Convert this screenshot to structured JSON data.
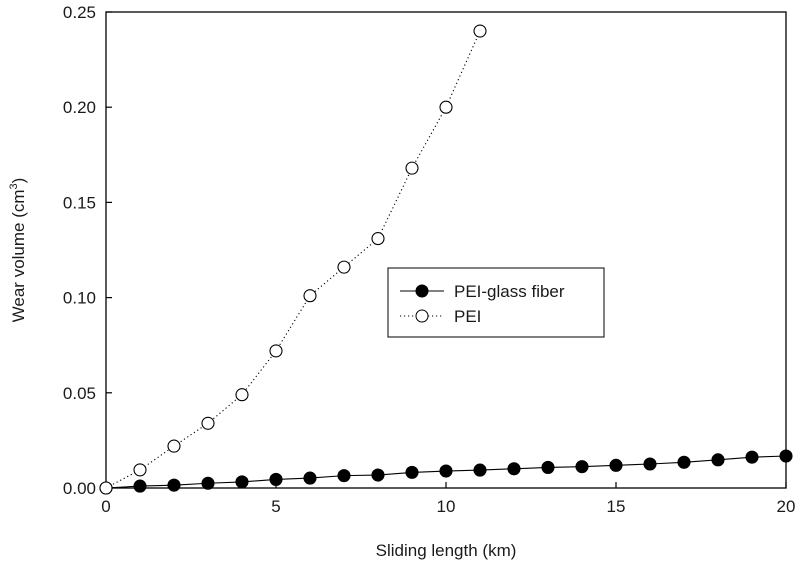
{
  "chart_data": {
    "type": "scatter",
    "title": "",
    "xlabel": "Sliding length (km)",
    "ylabel_main": "Wear volume (cm",
    "ylabel_sup": "3",
    "ylabel_close": ")",
    "xlim": [
      0,
      20
    ],
    "ylim": [
      0,
      0.25
    ],
    "x_ticks": [
      "0",
      "5",
      "10",
      "15",
      "20"
    ],
    "y_ticks": [
      "0.00",
      "0.05",
      "0.10",
      "0.15",
      "0.20",
      "0.25"
    ],
    "grid": false,
    "legend_position": "center-right",
    "series": [
      {
        "name": "PEI-glass fiber",
        "marker": "filled-circle",
        "line": "solid",
        "color": "#000000",
        "x": [
          0,
          1,
          2,
          3,
          4,
          5,
          6,
          7,
          8,
          9,
          10,
          11,
          12,
          13,
          14,
          15,
          16,
          17,
          18,
          19,
          20
        ],
        "y": [
          0.0,
          0.001,
          0.0015,
          0.0025,
          0.0032,
          0.0045,
          0.0052,
          0.0065,
          0.0068,
          0.0082,
          0.0089,
          0.0094,
          0.0101,
          0.0108,
          0.0112,
          0.0119,
          0.0126,
          0.0135,
          0.0148,
          0.0162,
          0.0168
        ]
      },
      {
        "name": "PEI",
        "marker": "open-circle",
        "line": "dotted",
        "color": "#000000",
        "x": [
          0,
          1,
          2,
          3,
          4,
          5,
          6,
          7,
          8,
          9,
          10,
          11
        ],
        "y": [
          0.0,
          0.0095,
          0.022,
          0.034,
          0.049,
          0.072,
          0.101,
          0.116,
          0.131,
          0.168,
          0.2,
          0.24
        ]
      }
    ]
  }
}
